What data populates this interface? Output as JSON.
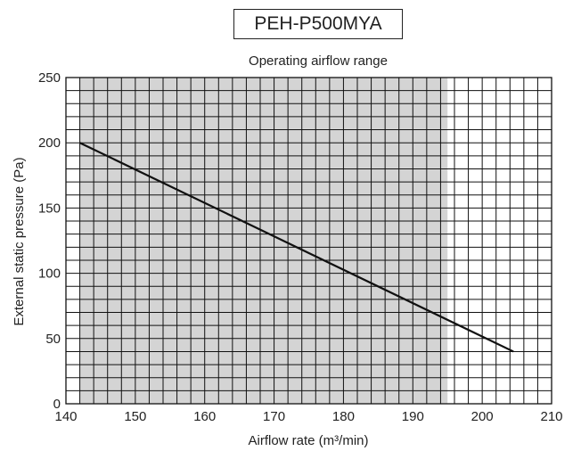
{
  "chart_data": {
    "type": "line",
    "title": "PEH-P500MYA",
    "subtitle": "Operating airflow range",
    "xlabel": "Airflow rate (m³/min)",
    "ylabel": "External static pressure (Pa)",
    "xlim": [
      140,
      210
    ],
    "ylim": [
      0,
      250
    ],
    "x_ticks": [
      "140",
      "150",
      "160",
      "170",
      "180",
      "190",
      "200",
      "210"
    ],
    "y_ticks": [
      "0",
      "50",
      "100",
      "150",
      "200",
      "250"
    ],
    "shaded_region": {
      "x_from": 142,
      "x_to": 195
    },
    "series": [
      {
        "values": [
          {
            "x": 142,
            "y": 200
          },
          {
            "x": 204.5,
            "y": 40
          }
        ]
      }
    ],
    "grid": true
  },
  "colors": {
    "shade": "#d4d4d4",
    "grid": "#111111",
    "line": "#111111"
  }
}
